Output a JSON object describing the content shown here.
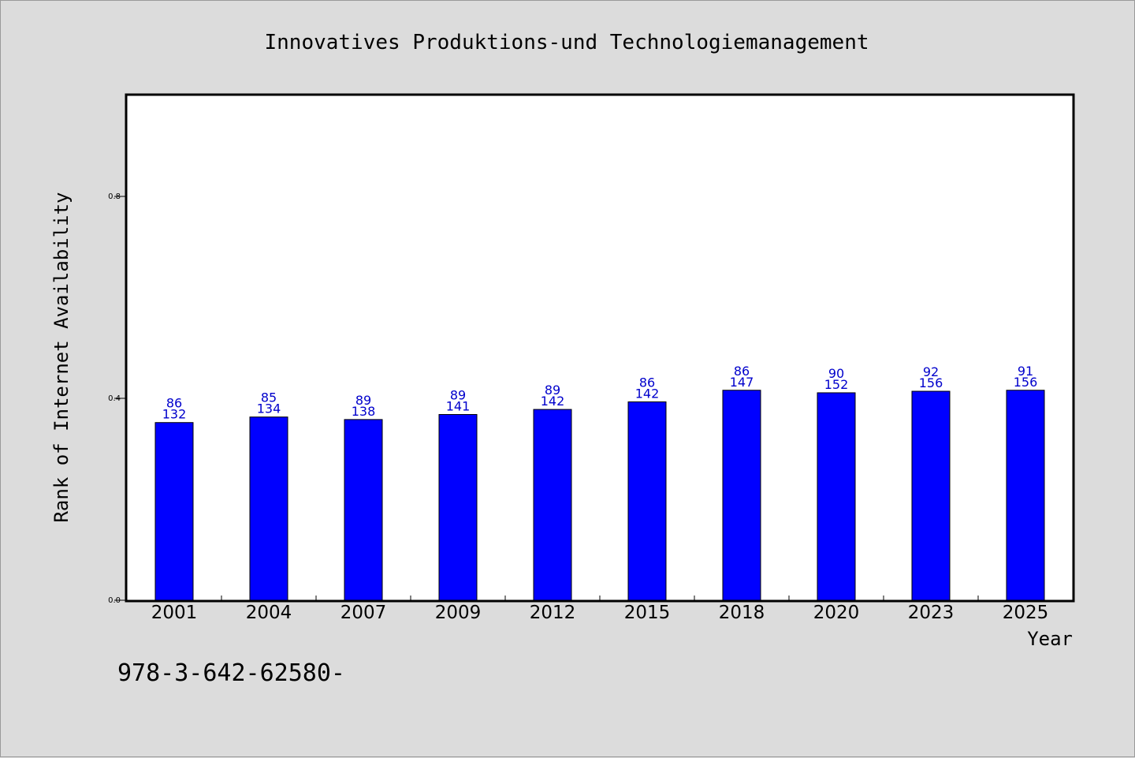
{
  "chart_data": {
    "type": "bar",
    "title": "Innovatives Produktions-und Technologiemanagement",
    "xlabel": "Year",
    "ylabel": "Rank of Internet Availability",
    "categories": [
      "2001",
      "2004",
      "2007",
      "2009",
      "2012",
      "2015",
      "2018",
      "2020",
      "2023",
      "2025"
    ],
    "values": [
      0.352,
      0.363,
      0.358,
      0.368,
      0.378,
      0.393,
      0.416,
      0.411,
      0.414,
      0.416
    ],
    "top_labels": [
      "86",
      "85",
      "89",
      "89",
      "89",
      "86",
      "86",
      "90",
      "92",
      "91"
    ],
    "bottom_labels": [
      "132",
      "134",
      "138",
      "141",
      "142",
      "142",
      "147",
      "152",
      "156",
      "156"
    ],
    "ylim": [
      0,
      1.0
    ],
    "yticks": [
      0.0,
      0.4,
      0.8
    ],
    "ytick_labels": [
      "0.0",
      "0.4",
      "0.8"
    ],
    "bar_color": "#0000ff",
    "label_color": "#0000cc",
    "grid": false,
    "legend": "none"
  },
  "footnote": "978-3-642-62580-"
}
